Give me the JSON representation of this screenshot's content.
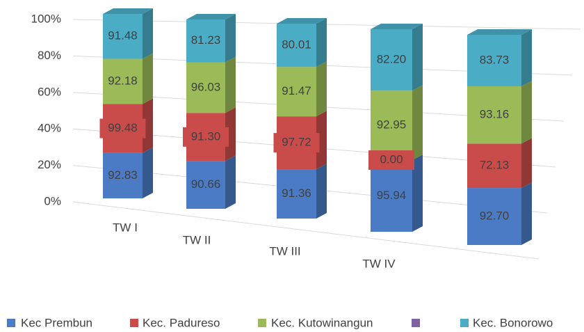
{
  "chart_data": {
    "type": "bar",
    "stacked": "percent",
    "categories": [
      "TW I",
      "TW II",
      "TW III",
      "TW IV",
      null
    ],
    "series": [
      {
        "name": "Kec Prembun",
        "color": "#4a7bc4",
        "values": [
          92.83,
          90.66,
          91.36,
          95.94,
          92.7
        ]
      },
      {
        "name": "Kec. Padureso",
        "color": "#c94c4a",
        "values": [
          99.48,
          91.3,
          97.72,
          0.0,
          72.13
        ]
      },
      {
        "name": "Kec. Kutowinangun",
        "color": "#9bbb59",
        "values": [
          92.18,
          96.03,
          91.47,
          92.95,
          93.16
        ]
      },
      {
        "name": null,
        "color": "#8064a2",
        "values": [
          null,
          null,
          null,
          null,
          null
        ]
      },
      {
        "name": "Kec. Bonorowo",
        "color": "#4bacc6",
        "values": [
          91.48,
          81.23,
          80.01,
          82.2,
          83.73
        ]
      }
    ],
    "value_labels": [
      [
        "92.83",
        "90.66",
        "91.36",
        "95.94",
        "92.70"
      ],
      [
        "99.48",
        "91.30",
        "97.72",
        "0.00",
        "72.13"
      ],
      [
        "92.18",
        "96.03",
        "91.47",
        "92.95",
        "93.16"
      ],
      [
        null,
        null,
        null,
        null,
        null
      ],
      [
        "91.48",
        "81.23",
        "80.01",
        "82.20",
        "83.73"
      ]
    ],
    "ylim": [
      0,
      100
    ],
    "yticks": [
      {
        "value": 0,
        "label": "0%"
      },
      {
        "value": 20,
        "label": "20%"
      },
      {
        "value": 40,
        "label": "40%"
      },
      {
        "value": 60,
        "label": "60%"
      },
      {
        "value": 80,
        "label": "80%"
      },
      {
        "value": 100,
        "label": "100%"
      }
    ],
    "grid": true,
    "legend": "bottom"
  }
}
